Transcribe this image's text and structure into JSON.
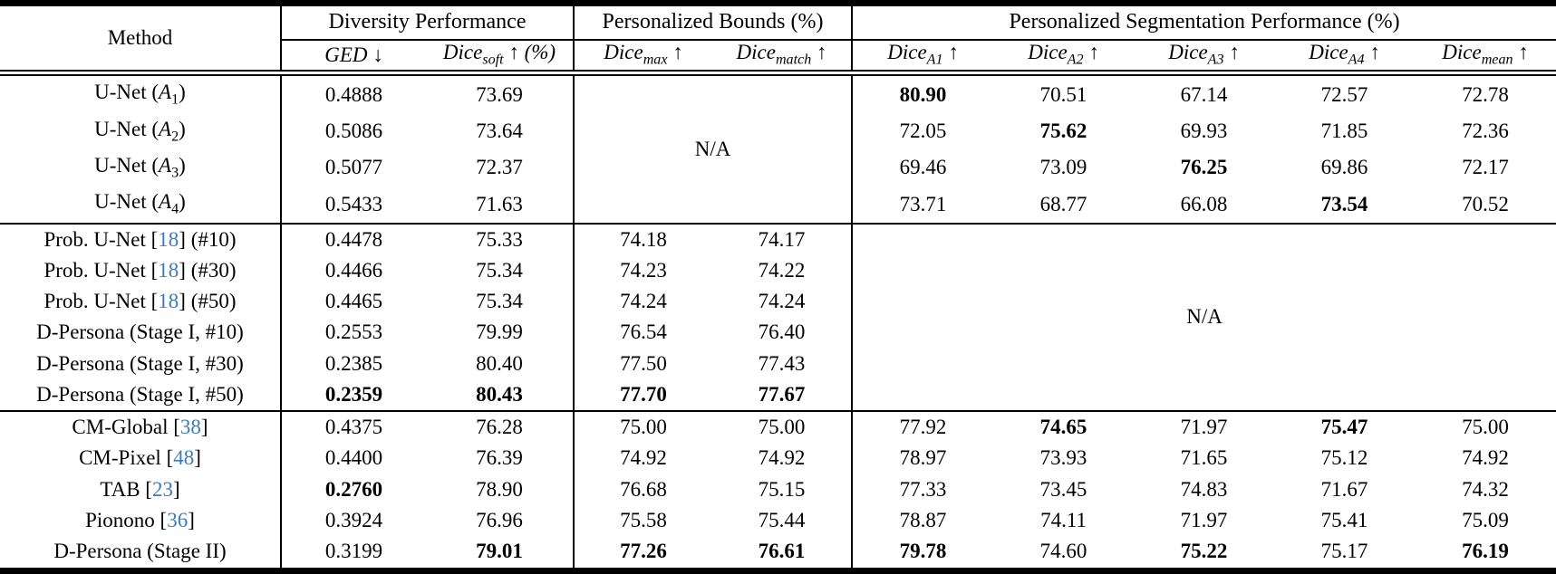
{
  "colors": {
    "citation_link": "#3d7cb8",
    "text": "#000000",
    "background": "#ffffff"
  },
  "na_label": "N/A",
  "header": {
    "method_label": "Method",
    "groups": [
      {
        "label": "Diversity Performance",
        "span": 2
      },
      {
        "label": "Personalized Bounds (%)",
        "span": 2
      },
      {
        "label": "Personalized Segmentation Performance (%)",
        "span": 5
      }
    ],
    "subcols": [
      {
        "key": "ged",
        "base": "GED",
        "sub": "",
        "arrow": "↓",
        "suffix": ""
      },
      {
        "key": "dice_soft",
        "base": "Dice",
        "sub": "soft",
        "arrow": "↑",
        "suffix": "(%)"
      },
      {
        "key": "dice_max",
        "base": "Dice",
        "sub": "max",
        "arrow": "↑",
        "suffix": ""
      },
      {
        "key": "dice_match",
        "base": "Dice",
        "sub": "match",
        "arrow": "↑",
        "suffix": ""
      },
      {
        "key": "a1",
        "base": "Dice",
        "sub": "A1",
        "arrow": "↑",
        "suffix": ""
      },
      {
        "key": "a2",
        "base": "Dice",
        "sub": "A2",
        "arrow": "↑",
        "suffix": ""
      },
      {
        "key": "a3",
        "base": "Dice",
        "sub": "A3",
        "arrow": "↑",
        "suffix": ""
      },
      {
        "key": "a4",
        "base": "Dice",
        "sub": "A4",
        "arrow": "↑",
        "suffix": ""
      },
      {
        "key": "mean",
        "base": "Dice",
        "sub": "mean",
        "arrow": "↑",
        "suffix": ""
      }
    ]
  },
  "sections": [
    {
      "na": "bounds",
      "rows": [
        {
          "method": [
            {
              "t": "U-Net ("
            },
            {
              "t": "A",
              "s": "i"
            },
            {
              "t": "1",
              "s": "sub"
            },
            {
              "t": ")"
            }
          ],
          "cells": {
            "ged": {
              "v": "0.4888"
            },
            "dice_soft": {
              "v": "73.69"
            },
            "a1": {
              "v": "80.90",
              "b": true
            },
            "a2": {
              "v": "70.51"
            },
            "a3": {
              "v": "67.14"
            },
            "a4": {
              "v": "72.57"
            },
            "mean": {
              "v": "72.78"
            }
          }
        },
        {
          "method": [
            {
              "t": "U-Net ("
            },
            {
              "t": "A",
              "s": "i"
            },
            {
              "t": "2",
              "s": "sub"
            },
            {
              "t": ")"
            }
          ],
          "cells": {
            "ged": {
              "v": "0.5086"
            },
            "dice_soft": {
              "v": "73.64"
            },
            "a1": {
              "v": "72.05"
            },
            "a2": {
              "v": "75.62",
              "b": true
            },
            "a3": {
              "v": "69.93"
            },
            "a4": {
              "v": "71.85"
            },
            "mean": {
              "v": "72.36"
            }
          }
        },
        {
          "method": [
            {
              "t": "U-Net ("
            },
            {
              "t": "A",
              "s": "i"
            },
            {
              "t": "3",
              "s": "sub"
            },
            {
              "t": ")"
            }
          ],
          "cells": {
            "ged": {
              "v": "0.5077"
            },
            "dice_soft": {
              "v": "72.37"
            },
            "a1": {
              "v": "69.46"
            },
            "a2": {
              "v": "73.09"
            },
            "a3": {
              "v": "76.25",
              "b": true
            },
            "a4": {
              "v": "69.86"
            },
            "mean": {
              "v": "72.17"
            }
          }
        },
        {
          "method": [
            {
              "t": "U-Net ("
            },
            {
              "t": "A",
              "s": "i"
            },
            {
              "t": "4",
              "s": "sub"
            },
            {
              "t": ")"
            }
          ],
          "cells": {
            "ged": {
              "v": "0.5433"
            },
            "dice_soft": {
              "v": "71.63"
            },
            "a1": {
              "v": "73.71"
            },
            "a2": {
              "v": "68.77"
            },
            "a3": {
              "v": "66.08"
            },
            "a4": {
              "v": "73.54",
              "b": true
            },
            "mean": {
              "v": "70.52"
            }
          }
        }
      ]
    },
    {
      "na": "seg",
      "rows": [
        {
          "method": [
            {
              "t": "Prob. U-Net ["
            },
            {
              "t": "18",
              "s": "c"
            },
            {
              "t": "] (#10)"
            }
          ],
          "cells": {
            "ged": {
              "v": "0.4478"
            },
            "dice_soft": {
              "v": "75.33"
            },
            "dice_max": {
              "v": "74.18"
            },
            "dice_match": {
              "v": "74.17"
            }
          }
        },
        {
          "method": [
            {
              "t": "Prob. U-Net ["
            },
            {
              "t": "18",
              "s": "c"
            },
            {
              "t": "] (#30)"
            }
          ],
          "cells": {
            "ged": {
              "v": "0.4466"
            },
            "dice_soft": {
              "v": "75.34"
            },
            "dice_max": {
              "v": "74.23"
            },
            "dice_match": {
              "v": "74.22"
            }
          }
        },
        {
          "method": [
            {
              "t": "Prob. U-Net ["
            },
            {
              "t": "18",
              "s": "c"
            },
            {
              "t": "] (#50)"
            }
          ],
          "cells": {
            "ged": {
              "v": "0.4465"
            },
            "dice_soft": {
              "v": "75.34"
            },
            "dice_max": {
              "v": "74.24"
            },
            "dice_match": {
              "v": "74.24"
            }
          }
        },
        {
          "method": [
            {
              "t": "D-Persona (Stage I, #10)"
            }
          ],
          "cells": {
            "ged": {
              "v": "0.2553"
            },
            "dice_soft": {
              "v": "79.99"
            },
            "dice_max": {
              "v": "76.54"
            },
            "dice_match": {
              "v": "76.40"
            }
          }
        },
        {
          "method": [
            {
              "t": "D-Persona (Stage I, #30)"
            }
          ],
          "cells": {
            "ged": {
              "v": "0.2385"
            },
            "dice_soft": {
              "v": "80.40"
            },
            "dice_max": {
              "v": "77.50"
            },
            "dice_match": {
              "v": "77.43"
            }
          }
        },
        {
          "method": [
            {
              "t": "D-Persona (Stage I, #50)"
            }
          ],
          "cells": {
            "ged": {
              "v": "0.2359",
              "b": true
            },
            "dice_soft": {
              "v": "80.43",
              "b": true
            },
            "dice_max": {
              "v": "77.70",
              "b": true
            },
            "dice_match": {
              "v": "77.67",
              "b": true
            }
          }
        }
      ]
    },
    {
      "na": null,
      "rows": [
        {
          "method": [
            {
              "t": "CM-Global ["
            },
            {
              "t": "38",
              "s": "c"
            },
            {
              "t": "]"
            }
          ],
          "cells": {
            "ged": {
              "v": "0.4375"
            },
            "dice_soft": {
              "v": "76.28"
            },
            "dice_max": {
              "v": "75.00"
            },
            "dice_match": {
              "v": "75.00"
            },
            "a1": {
              "v": "77.92"
            },
            "a2": {
              "v": "74.65",
              "b": true
            },
            "a3": {
              "v": "71.97"
            },
            "a4": {
              "v": "75.47",
              "b": true
            },
            "mean": {
              "v": "75.00"
            }
          }
        },
        {
          "method": [
            {
              "t": "CM-Pixel ["
            },
            {
              "t": "48",
              "s": "c"
            },
            {
              "t": "]"
            }
          ],
          "cells": {
            "ged": {
              "v": "0.4400"
            },
            "dice_soft": {
              "v": "76.39"
            },
            "dice_max": {
              "v": "74.92"
            },
            "dice_match": {
              "v": "74.92"
            },
            "a1": {
              "v": "78.97"
            },
            "a2": {
              "v": "73.93"
            },
            "a3": {
              "v": "71.65"
            },
            "a4": {
              "v": "75.12"
            },
            "mean": {
              "v": "74.92"
            }
          }
        },
        {
          "method": [
            {
              "t": "TAB ["
            },
            {
              "t": "23",
              "s": "c"
            },
            {
              "t": "]"
            }
          ],
          "cells": {
            "ged": {
              "v": "0.2760",
              "b": true
            },
            "dice_soft": {
              "v": "78.90"
            },
            "dice_max": {
              "v": "76.68"
            },
            "dice_match": {
              "v": "75.15"
            },
            "a1": {
              "v": "77.33"
            },
            "a2": {
              "v": "73.45"
            },
            "a3": {
              "v": "74.83"
            },
            "a4": {
              "v": "71.67"
            },
            "mean": {
              "v": "74.32"
            }
          }
        },
        {
          "method": [
            {
              "t": "Pionono ["
            },
            {
              "t": "36",
              "s": "c"
            },
            {
              "t": "]"
            }
          ],
          "cells": {
            "ged": {
              "v": "0.3924"
            },
            "dice_soft": {
              "v": "76.96"
            },
            "dice_max": {
              "v": "75.58"
            },
            "dice_match": {
              "v": "75.44"
            },
            "a1": {
              "v": "78.87"
            },
            "a2": {
              "v": "74.11"
            },
            "a3": {
              "v": "71.97"
            },
            "a4": {
              "v": "75.41"
            },
            "mean": {
              "v": "75.09"
            }
          }
        },
        {
          "method": [
            {
              "t": "D-Persona (Stage II)"
            }
          ],
          "cells": {
            "ged": {
              "v": "0.3199"
            },
            "dice_soft": {
              "v": "79.01",
              "b": true
            },
            "dice_max": {
              "v": "77.26",
              "b": true
            },
            "dice_match": {
              "v": "76.61",
              "b": true
            },
            "a1": {
              "v": "79.78",
              "b": true
            },
            "a2": {
              "v": "74.60"
            },
            "a3": {
              "v": "75.22",
              "b": true
            },
            "a4": {
              "v": "75.17"
            },
            "mean": {
              "v": "76.19",
              "b": true
            }
          }
        }
      ]
    }
  ]
}
